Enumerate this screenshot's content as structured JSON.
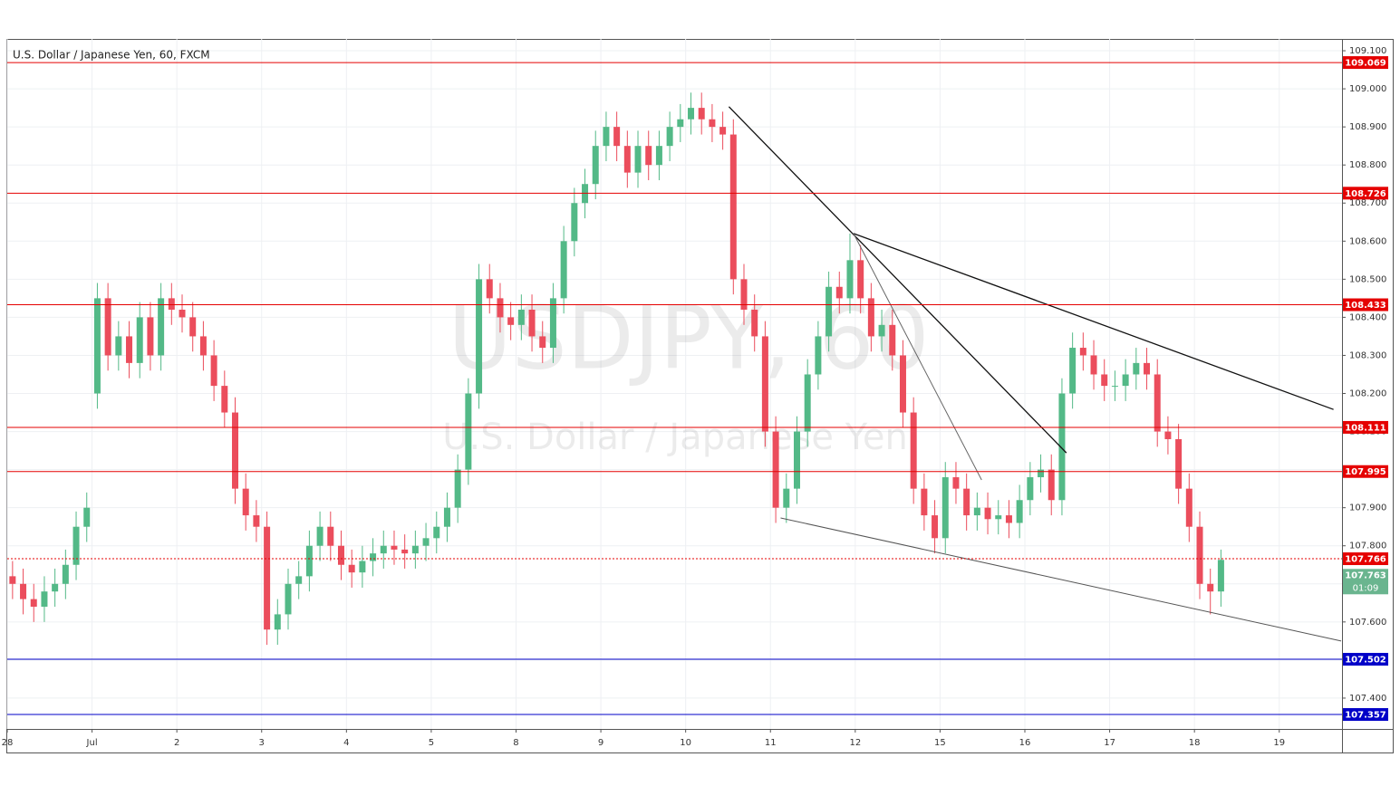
{
  "chart_data": {
    "type": "candlestick",
    "title": "U.S. Dollar / Japanese Yen, 60, FXCM",
    "watermark": "USDJPY, 60",
    "watermark_subtitle": "U.S. Dollar / Japanese Yen",
    "up_color": "#53b987",
    "down_color": "#eb4d5c",
    "x": [
      0.0625,
      0.1875,
      0.3125,
      0.4375,
      0.5625,
      0.6875,
      0.8125,
      0.9375,
      1.0625,
      1.1875,
      1.3125,
      1.4375,
      1.5625,
      1.6875,
      1.8125,
      1.9375,
      2.0625,
      2.1875,
      2.3125,
      2.4375,
      2.5625,
      2.6875,
      2.8125,
      2.9375,
      3.0625,
      3.1875,
      3.3125,
      3.4375,
      3.5625,
      3.6875,
      3.8125,
      3.9375,
      4.0625,
      4.1875,
      4.3125,
      4.4375,
      4.5625,
      4.6875,
      4.8125,
      4.9375,
      5.0625,
      5.1875,
      5.3125,
      5.4375,
      5.5625,
      5.6875,
      5.8125,
      5.9375,
      6.0625,
      6.1875,
      6.3125,
      6.4375,
      6.5625,
      6.6875,
      6.8125,
      6.9375,
      7.0625,
      7.1875,
      7.3125,
      7.4375,
      7.5625,
      7.6875,
      7.8125,
      7.9375,
      8.0625,
      8.1875,
      8.3125,
      8.4375,
      8.5625,
      8.6875,
      8.8125,
      8.9375,
      9.0625,
      9.1875,
      9.3125,
      9.4375,
      9.5625,
      9.6875,
      9.8125,
      9.9375,
      10.0625,
      10.1875,
      10.3125,
      10.4375,
      10.5625,
      10.6875,
      10.8125,
      10.9375,
      11.0625,
      11.1875,
      11.3125,
      11.4375,
      11.5625,
      11.6875,
      11.8125,
      11.9375,
      12.0625,
      12.1875,
      12.3125,
      12.4375,
      12.5625,
      12.6875,
      12.8125,
      12.9375,
      13.0625,
      13.1875,
      13.3125,
      13.4375,
      13.5625,
      13.6875,
      13.8125,
      13.9375,
      14.0625,
      14.1875,
      14.3125
    ],
    "open": [
      107.72,
      107.7,
      107.66,
      107.64,
      107.68,
      107.7,
      107.75,
      107.85,
      108.2,
      108.45,
      108.3,
      108.35,
      108.28,
      108.4,
      108.3,
      108.45,
      108.42,
      108.4,
      108.35,
      108.3,
      108.22,
      108.15,
      107.95,
      107.88,
      107.85,
      107.58,
      107.62,
      107.7,
      107.72,
      107.8,
      107.85,
      107.8,
      107.75,
      107.73,
      107.76,
      107.78,
      107.8,
      107.79,
      107.78,
      107.8,
      107.82,
      107.85,
      107.9,
      108.0,
      108.2,
      108.5,
      108.45,
      108.4,
      108.38,
      108.42,
      108.35,
      108.32,
      108.45,
      108.6,
      108.7,
      108.75,
      108.85,
      108.9,
      108.85,
      108.78,
      108.85,
      108.8,
      108.85,
      108.9,
      108.92,
      108.95,
      108.92,
      108.9,
      108.88,
      108.5,
      108.42,
      108.35,
      108.1,
      107.9,
      107.95,
      108.1,
      108.25,
      108.35,
      108.48,
      108.45,
      108.55,
      108.45,
      108.35,
      108.38,
      108.3,
      108.15,
      107.95,
      107.88,
      107.82,
      107.98,
      107.95,
      107.88,
      107.9,
      107.87,
      107.88,
      107.86,
      107.92,
      107.98,
      108.0,
      107.92,
      108.2,
      108.32,
      108.3,
      108.25,
      108.22,
      108.22,
      108.25,
      108.28,
      108.25,
      108.1,
      108.08,
      107.95,
      107.85,
      107.7,
      107.68
    ],
    "high": [
      107.76,
      107.74,
      107.7,
      107.72,
      107.74,
      107.79,
      107.89,
      107.94,
      108.49,
      108.49,
      108.39,
      108.39,
      108.44,
      108.44,
      108.49,
      108.49,
      108.46,
      108.44,
      108.39,
      108.34,
      108.26,
      108.19,
      107.99,
      107.92,
      107.89,
      107.66,
      107.74,
      107.76,
      107.84,
      107.89,
      107.89,
      107.84,
      107.79,
      107.8,
      107.82,
      107.84,
      107.84,
      107.83,
      107.84,
      107.86,
      107.89,
      107.94,
      108.04,
      108.24,
      108.54,
      108.54,
      108.49,
      108.44,
      108.46,
      108.46,
      108.39,
      108.49,
      108.64,
      108.74,
      108.79,
      108.89,
      108.94,
      108.94,
      108.89,
      108.89,
      108.89,
      108.89,
      108.94,
      108.96,
      108.99,
      108.99,
      108.96,
      108.94,
      108.92,
      108.54,
      108.46,
      108.39,
      108.14,
      107.99,
      108.14,
      108.29,
      108.39,
      108.52,
      108.52,
      108.62,
      108.59,
      108.49,
      108.42,
      108.42,
      108.34,
      108.19,
      107.99,
      107.92,
      108.02,
      108.02,
      107.99,
      107.94,
      107.94,
      107.92,
      107.92,
      107.96,
      108.02,
      108.04,
      108.04,
      108.24,
      108.36,
      108.36,
      108.34,
      108.29,
      108.26,
      108.29,
      108.32,
      108.32,
      108.29,
      108.14,
      108.12,
      107.99,
      107.89,
      107.74,
      107.79
    ],
    "low": [
      107.66,
      107.62,
      107.6,
      107.6,
      107.64,
      107.66,
      107.71,
      107.81,
      108.16,
      108.26,
      108.26,
      108.24,
      108.24,
      108.26,
      108.26,
      108.38,
      108.36,
      108.31,
      108.26,
      108.18,
      108.11,
      107.91,
      107.84,
      107.81,
      107.54,
      107.54,
      107.58,
      107.66,
      107.68,
      107.76,
      107.76,
      107.71,
      107.69,
      107.69,
      107.72,
      107.74,
      107.75,
      107.74,
      107.74,
      107.76,
      107.78,
      107.81,
      107.86,
      107.96,
      108.16,
      108.41,
      108.36,
      108.34,
      108.34,
      108.31,
      108.28,
      108.28,
      108.41,
      108.56,
      108.66,
      108.71,
      108.81,
      108.81,
      108.74,
      108.74,
      108.76,
      108.76,
      108.81,
      108.86,
      108.88,
      108.88,
      108.86,
      108.84,
      108.46,
      108.38,
      108.31,
      108.06,
      107.86,
      107.86,
      107.91,
      108.06,
      108.21,
      108.31,
      108.41,
      108.41,
      108.41,
      108.31,
      108.31,
      108.26,
      108.11,
      107.91,
      107.84,
      107.78,
      107.78,
      107.91,
      107.84,
      107.84,
      107.83,
      107.83,
      107.82,
      107.82,
      107.88,
      107.94,
      107.88,
      107.88,
      108.16,
      108.26,
      108.21,
      108.18,
      108.18,
      108.18,
      108.21,
      108.21,
      108.06,
      108.04,
      107.91,
      107.81,
      107.66,
      107.62,
      107.64
    ],
    "close": [
      107.7,
      107.66,
      107.64,
      107.68,
      107.7,
      107.75,
      107.85,
      107.9,
      108.45,
      108.3,
      108.35,
      108.28,
      108.4,
      108.3,
      108.45,
      108.42,
      108.4,
      108.35,
      108.3,
      108.22,
      108.15,
      107.95,
      107.88,
      107.85,
      107.58,
      107.62,
      107.7,
      107.72,
      107.8,
      107.85,
      107.8,
      107.75,
      107.73,
      107.76,
      107.78,
      107.8,
      107.79,
      107.78,
      107.8,
      107.82,
      107.85,
      107.9,
      108.0,
      108.2,
      108.5,
      108.45,
      108.4,
      108.38,
      108.42,
      108.35,
      108.32,
      108.45,
      108.6,
      108.7,
      108.75,
      108.85,
      108.9,
      108.85,
      108.78,
      108.85,
      108.8,
      108.85,
      108.9,
      108.92,
      108.95,
      108.92,
      108.9,
      108.88,
      108.5,
      108.42,
      108.35,
      108.1,
      107.9,
      107.95,
      108.1,
      108.25,
      108.35,
      108.48,
      108.45,
      108.55,
      108.45,
      108.35,
      108.38,
      108.3,
      108.15,
      107.95,
      107.88,
      107.82,
      107.98,
      107.95,
      107.88,
      107.9,
      107.87,
      107.88,
      107.86,
      107.92,
      107.98,
      108.0,
      107.92,
      108.2,
      108.32,
      108.3,
      108.25,
      108.22,
      108.22,
      108.25,
      108.28,
      108.25,
      108.1,
      108.08,
      107.95,
      107.85,
      107.7,
      107.68,
      107.763
    ],
    "xlim": [
      0,
      15.74
    ],
    "xticks": [
      {
        "value": 0,
        "label": "28"
      },
      {
        "value": 1,
        "label": "Jul"
      },
      2,
      3,
      4,
      5,
      {
        "value": 6,
        "label": "8"
      },
      {
        "value": 7,
        "label": "9"
      },
      {
        "value": 8,
        "label": "10"
      },
      {
        "value": 9,
        "label": "11"
      },
      {
        "value": 10,
        "label": "12"
      },
      {
        "value": 11,
        "label": "15"
      },
      {
        "value": 12,
        "label": "16"
      },
      {
        "value": 13,
        "label": "17"
      },
      {
        "value": 14,
        "label": "18"
      },
      {
        "value": 15,
        "label": "19"
      }
    ],
    "ylim": [
      107.319,
      109.131
    ],
    "yticks": [
      {
        "value": 107.4,
        "label": "107.400"
      },
      {
        "value": 107.5,
        "label": "107.500"
      },
      {
        "value": 107.6,
        "label": "107.600"
      },
      {
        "value": 107.7,
        "label": "107.700"
      },
      {
        "value": 107.8,
        "label": "107.800"
      },
      {
        "value": 107.9,
        "label": "107.900"
      },
      {
        "value": 108.0,
        "label": "108.000"
      },
      {
        "value": 108.1,
        "label": "108.100"
      },
      {
        "value": 108.2,
        "label": "108.200"
      },
      {
        "value": 108.3,
        "label": "108.300"
      },
      {
        "value": 108.4,
        "label": "108.400"
      },
      {
        "value": 108.5,
        "label": "108.500"
      },
      {
        "value": 108.6,
        "label": "108.600"
      },
      {
        "value": 108.7,
        "label": "108.700"
      },
      {
        "value": 108.8,
        "label": "108.800"
      },
      {
        "value": 108.9,
        "label": "108.900"
      },
      {
        "value": 109.0,
        "label": "109.000"
      },
      {
        "value": 109.1,
        "label": "109.100"
      }
    ],
    "grid": true,
    "levels": [
      {
        "value": 109.069,
        "color": "#e50000"
      },
      {
        "value": 108.726,
        "color": "#e50000"
      },
      {
        "value": 108.433,
        "color": "#e50000"
      },
      {
        "value": 108.111,
        "color": "#e50000"
      },
      {
        "value": 107.995,
        "color": "#e50000"
      },
      {
        "value": 107.766,
        "color": "#e50000",
        "dashed": true
      },
      {
        "value": 107.502,
        "color": "#0000c8"
      },
      {
        "value": 107.357,
        "color": "#0000c8"
      }
    ],
    "last_price": {
      "value": 107.763,
      "countdown": "01:09",
      "color": "#6ab58f"
    },
    "trendlines": [
      {
        "x": [
          8.51,
          12.49
        ],
        "y": [
          108.953,
          108.044
        ],
        "color": "#111111",
        "width": 1.3
      },
      {
        "x": [
          9.98,
          15.64
        ],
        "y": [
          108.62,
          108.158
        ],
        "color": "#111111",
        "width": 1.3
      },
      {
        "x": [
          9.98,
          11.49
        ],
        "y": [
          108.62,
          107.973
        ],
        "color": "#666666",
        "width": 1
      },
      {
        "x": [
          9.12,
          15.73
        ],
        "y": [
          107.873,
          107.55
        ],
        "color": "#555555",
        "width": 1
      }
    ]
  }
}
